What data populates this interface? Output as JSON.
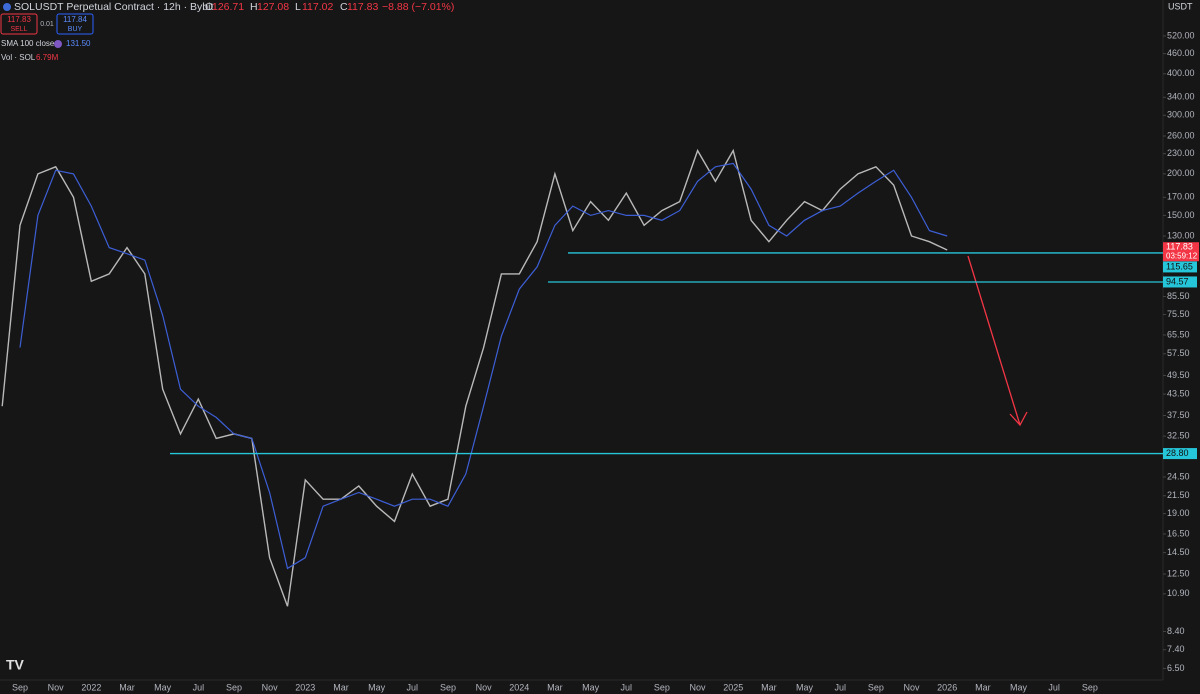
{
  "header": {
    "title": "SOLUSDT Perpetual Contract · 12h · Bybit",
    "ohlc": [
      [
        "O",
        "126.71"
      ],
      [
        "H",
        "127.08"
      ],
      [
        "L",
        "117.02"
      ],
      [
        "C",
        "117.83"
      ]
    ],
    "change": "−8.88 (−7.01%)",
    "sell": {
      "price": "117.83",
      "label": "SELL"
    },
    "spread": "0.01",
    "buy": {
      "price": "117.84",
      "label": "BUY"
    },
    "indicators": [
      {
        "name": "SMA 100 close",
        "value": "131.50"
      },
      {
        "name": "Vol · SOL",
        "value": "6.79M"
      }
    ],
    "currency": "USDT"
  },
  "chart_data": {
    "type": "line",
    "log_scale": true,
    "grid": false,
    "categories": [
      null,
      "Sep",
      null,
      "Nov",
      null,
      "2022",
      null,
      "Mar",
      null,
      "May",
      null,
      "Jul",
      null,
      "Sep",
      null,
      "Nov",
      null,
      "2023",
      null,
      "Mar",
      null,
      "May",
      null,
      "Jul",
      null,
      "Sep",
      null,
      "Nov",
      null,
      "2024",
      null,
      "Mar",
      null,
      "May",
      null,
      "Jul",
      null,
      "Sep",
      null,
      "Nov",
      null,
      "2025",
      null,
      "Mar",
      null,
      "May",
      null,
      "Jul",
      null,
      "Sep",
      null,
      "Nov",
      null,
      "2026",
      null,
      "Mar",
      null,
      "May",
      null,
      "Jul",
      null,
      "Sep"
    ],
    "series": [
      {
        "color": "#b9b9b9",
        "values": [
          40,
          140,
          200,
          210,
          170,
          95,
          100,
          120,
          100,
          45,
          33,
          42,
          32,
          33,
          32,
          14,
          10,
          24,
          21,
          21,
          23,
          20,
          18,
          25,
          20,
          21,
          40,
          60,
          100,
          100,
          125,
          200,
          135,
          165,
          145,
          175,
          140,
          155,
          165,
          235,
          190,
          235,
          145,
          125,
          145,
          165,
          155,
          180,
          200,
          210,
          185,
          130,
          125,
          118,
          null,
          null,
          null,
          null,
          null,
          null,
          null,
          null
        ]
      },
      {
        "name": "SMA 100 close",
        "color": "#3d5fd6",
        "values": [
          null,
          60,
          150,
          205,
          200,
          160,
          120,
          115,
          110,
          75,
          45,
          40,
          37,
          33,
          32,
          22,
          13,
          14,
          20,
          21,
          22,
          21,
          20,
          21,
          21,
          20,
          25,
          40,
          65,
          90,
          105,
          140,
          160,
          150,
          155,
          150,
          150,
          145,
          155,
          190,
          210,
          215,
          180,
          140,
          130,
          145,
          155,
          160,
          175,
          190,
          205,
          170,
          135,
          130,
          null,
          null,
          null,
          null,
          null,
          null,
          null,
          null
        ]
      }
    ],
    "ylim": [
      6,
      667
    ],
    "yticks": [
      {
        "value": 520,
        "label": "520.00"
      },
      {
        "value": 460,
        "label": "460.00"
      },
      {
        "value": 400,
        "label": "400.00"
      },
      {
        "value": 340,
        "label": "340.00"
      },
      {
        "value": 300,
        "label": "300.00"
      },
      {
        "value": 260,
        "label": "260.00"
      },
      {
        "value": 230,
        "label": "230.00"
      },
      {
        "value": 200,
        "label": "200.00"
      },
      {
        "value": 170,
        "label": "170.00"
      },
      {
        "value": 150,
        "label": "150.00"
      },
      {
        "value": 130,
        "label": "130.00"
      },
      {
        "value": 85.5,
        "label": "85.50"
      },
      {
        "value": 75.5,
        "label": "75.50"
      },
      {
        "value": 65.5,
        "label": "65.50"
      },
      {
        "value": 57.5,
        "label": "57.50"
      },
      {
        "value": 49.5,
        "label": "49.50"
      },
      {
        "value": 43.5,
        "label": "43.50"
      },
      {
        "value": 37.5,
        "label": "37.50"
      },
      {
        "value": 32.5,
        "label": "32.50"
      },
      {
        "value": 24.5,
        "label": "24.50"
      },
      {
        "value": 21.5,
        "label": "21.50"
      },
      {
        "value": 19,
        "label": "19.00"
      },
      {
        "value": 16.5,
        "label": "16.50"
      },
      {
        "value": 14.5,
        "label": "14.50"
      },
      {
        "value": 12.5,
        "label": "12.50"
      },
      {
        "value": 10.9,
        "label": "10.90"
      },
      {
        "value": 8.4,
        "label": "8.40"
      },
      {
        "value": 7.4,
        "label": "7.40"
      },
      {
        "value": 6.5,
        "label": "6.50"
      }
    ],
    "levels": [
      {
        "value": 115.65,
        "label": "115.65",
        "color": "#26c6da"
      },
      {
        "value": 94.57,
        "label": "94.57",
        "color": "#26c6da"
      },
      {
        "value": 28.8,
        "label": "28.80",
        "color": "#26c6da"
      }
    ],
    "last_price": {
      "value": 117.83,
      "label": "117.83",
      "countdown": "03:59:12",
      "color": "#f23645"
    }
  }
}
